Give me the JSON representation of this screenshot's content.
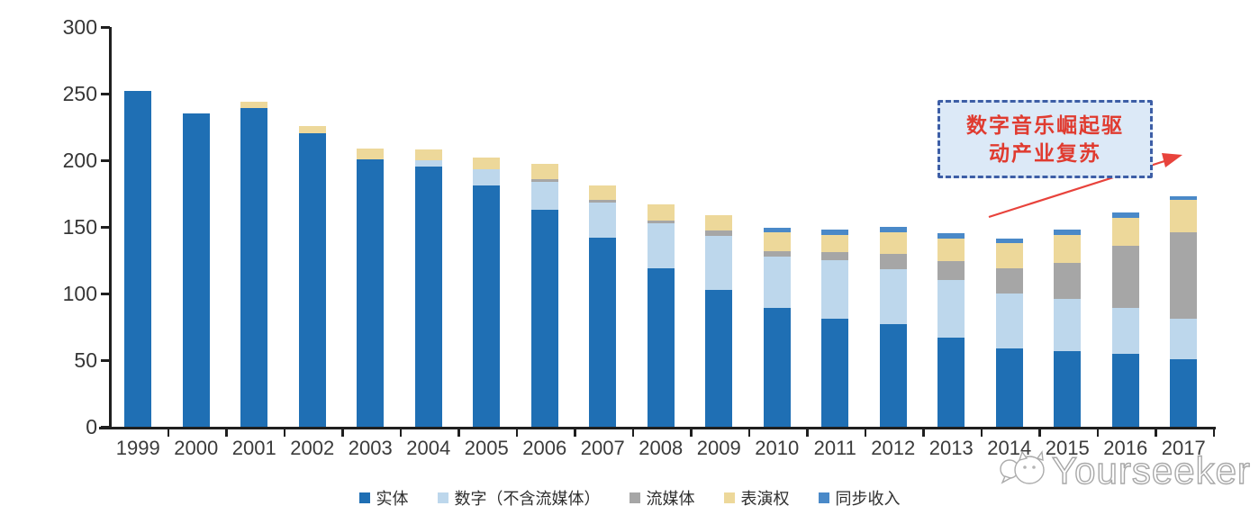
{
  "chart_data": {
    "type": "bar",
    "variant": "stacked",
    "title": "",
    "xlabel": "",
    "ylabel": "",
    "categories": [
      "1999",
      "2000",
      "2001",
      "2002",
      "2003",
      "2004",
      "2005",
      "2006",
      "2007",
      "2008",
      "2009",
      "2010",
      "2011",
      "2012",
      "2013",
      "2014",
      "2015",
      "2016",
      "2017"
    ],
    "series": [
      {
        "name": "实体",
        "color": "#1F6FB4",
        "values": [
          252,
          235,
          239,
          220,
          201,
          195,
          181,
          163,
          142,
          119,
          103,
          89,
          81,
          77,
          67,
          59,
          57,
          55,
          51
        ]
      },
      {
        "name": "数字（不含流媒体）",
        "color": "#BDD7EC",
        "values": [
          0,
          0,
          0,
          0,
          0,
          5,
          12,
          21,
          26,
          34,
          40,
          39,
          44,
          41,
          43,
          41,
          39,
          34,
          30
        ]
      },
      {
        "name": "流媒体",
        "color": "#A6A6A6",
        "values": [
          0,
          0,
          0,
          0,
          0,
          0,
          0,
          2,
          2,
          2,
          4,
          4,
          6,
          12,
          14,
          19,
          27,
          47,
          65
        ]
      },
      {
        "name": "表演权",
        "color": "#EDD89A",
        "values": [
          0,
          0,
          5,
          6,
          8,
          8,
          9,
          11,
          11,
          12,
          12,
          14,
          13,
          16,
          17,
          19,
          21,
          21,
          24
        ]
      },
      {
        "name": "同步收入",
        "color": "#4A89C8",
        "values": [
          0,
          0,
          0,
          0,
          0,
          0,
          0,
          0,
          0,
          0,
          0,
          3,
          4,
          4,
          4,
          3,
          4,
          4,
          3
        ]
      }
    ],
    "y_axis": {
      "min": 0,
      "max": 300,
      "step": 50,
      "tick_labels": [
        "0",
        "50",
        "100",
        "150",
        "200",
        "250",
        "300"
      ]
    },
    "grid": false,
    "legend_position": "bottom"
  },
  "annotation": {
    "line1": "数字音乐崛起驱",
    "line2": "动产业复苏",
    "text_color": "#E03B30",
    "box_fill": "#DCE9F7",
    "box_border": "#3D5EA6",
    "arrow_color": "#E8433C"
  },
  "watermark": {
    "text": "Yourseeker"
  }
}
